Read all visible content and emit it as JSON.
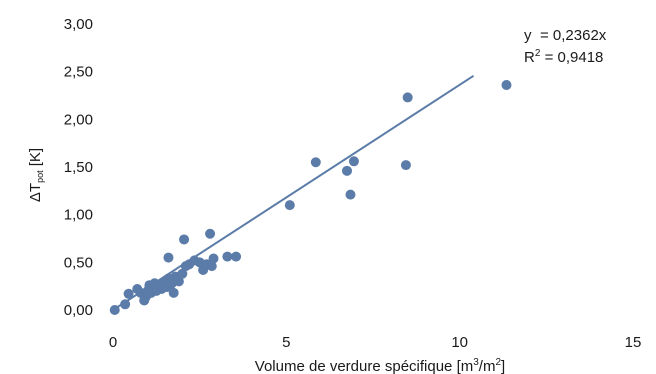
{
  "chart_data": {
    "type": "scatter",
    "xlabel_main": "Volume de verdure spécifique [m",
    "xlabel_sup1": "3",
    "xlabel_mid": "/m",
    "xlabel_sup2": "2",
    "xlabel_end": "]",
    "ylabel_main": "ΔT",
    "ylabel_sub": "pot",
    "ylabel_end": " [K]",
    "xlim": [
      0,
      15
    ],
    "ylim": [
      0,
      3
    ],
    "x_ticks": [
      "0",
      "5",
      "10",
      "15"
    ],
    "y_ticks": [
      "0,00",
      "0,50",
      "1,00",
      "1,50",
      "2,00",
      "2,50",
      "3,00"
    ],
    "grid": false,
    "marker_color": "#5b7ba8",
    "line_color": "#5b7ba8",
    "trendline": {
      "slope": 0.2362,
      "intercept": 0,
      "x_range": [
        0,
        10.4
      ]
    },
    "equation_y": "y",
    "equation_rhs": "= 0,2362x",
    "r2_label": "R",
    "r2_sup": "2",
    "r2_rhs": " = 0,9418",
    "points": [
      [
        0.05,
        0.0
      ],
      [
        0.35,
        0.06
      ],
      [
        0.45,
        0.17
      ],
      [
        0.7,
        0.22
      ],
      [
        0.8,
        0.18
      ],
      [
        0.9,
        0.1
      ],
      [
        0.95,
        0.14
      ],
      [
        1.0,
        0.2
      ],
      [
        1.05,
        0.26
      ],
      [
        1.1,
        0.18
      ],
      [
        1.15,
        0.22
      ],
      [
        1.2,
        0.28
      ],
      [
        1.25,
        0.2
      ],
      [
        1.3,
        0.24
      ],
      [
        1.35,
        0.26
      ],
      [
        1.4,
        0.22
      ],
      [
        1.45,
        0.28
      ],
      [
        1.5,
        0.3
      ],
      [
        1.55,
        0.24
      ],
      [
        1.6,
        0.33
      ],
      [
        1.65,
        0.26
      ],
      [
        1.7,
        0.28
      ],
      [
        1.75,
        0.18
      ],
      [
        1.6,
        0.55
      ],
      [
        1.8,
        0.35
      ],
      [
        1.9,
        0.3
      ],
      [
        2.0,
        0.38
      ],
      [
        2.05,
        0.74
      ],
      [
        2.1,
        0.46
      ],
      [
        2.2,
        0.48
      ],
      [
        2.35,
        0.52
      ],
      [
        2.5,
        0.5
      ],
      [
        2.6,
        0.42
      ],
      [
        2.7,
        0.48
      ],
      [
        2.8,
        0.8
      ],
      [
        2.85,
        0.46
      ],
      [
        2.9,
        0.54
      ],
      [
        3.3,
        0.56
      ],
      [
        3.55,
        0.56
      ],
      [
        5.1,
        1.1
      ],
      [
        5.85,
        1.55
      ],
      [
        6.75,
        1.46
      ],
      [
        6.85,
        1.21
      ],
      [
        6.95,
        1.56
      ],
      [
        8.45,
        1.52
      ],
      [
        8.5,
        2.23
      ],
      [
        11.35,
        2.36
      ]
    ]
  }
}
